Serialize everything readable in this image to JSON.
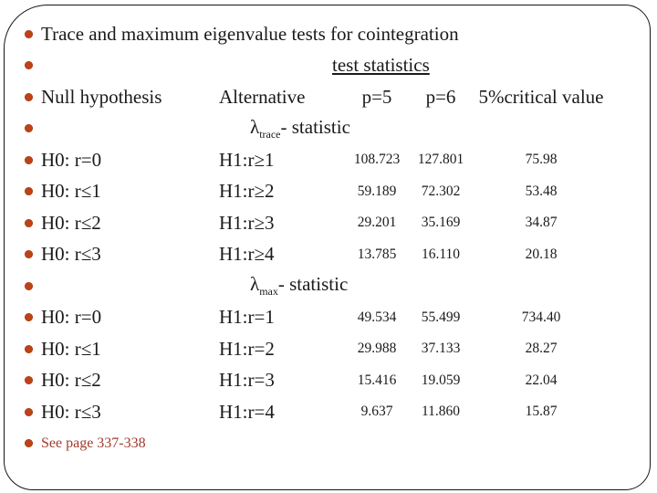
{
  "slide": {
    "title": "Trace and maximum eigenvalue tests for cointegration",
    "subtitle": "test statistics",
    "header": {
      "col1": "Null hypothesis",
      "col2": "Alternative",
      "col3": "p=5",
      "col4": "p=6",
      "col5": "5%critical value"
    },
    "sections": [
      {
        "label": {
          "lambda": "λ",
          "sub": "trace",
          "suffix": "- statistic"
        },
        "rows": [
          {
            "h0": "H0: r=0",
            "h1": "H1:r≥1",
            "p5": "108.723",
            "p6": "127.801",
            "crit": "75.98"
          },
          {
            "h0": "H0: r≤1",
            "h1": "H1:r≥2",
            "p5": "59.189",
            "p6": "72.302",
            "crit": "53.48"
          },
          {
            "h0": "H0: r≤2",
            "h1": "H1:r≥3",
            "p5": "29.201",
            "p6": "35.169",
            "crit": "34.87"
          },
          {
            "h0": "H0: r≤3",
            "h1": "H1:r≥4",
            "p5": "13.785",
            "p6": "16.110",
            "crit": "20.18"
          }
        ]
      },
      {
        "label": {
          "lambda": "λ",
          "sub": "max",
          "suffix": "- statistic"
        },
        "rows": [
          {
            "h0": "H0: r=0",
            "h1": "H1:r=1",
            "p5": "49.534",
            "p6": "55.499",
            "crit": "734.40"
          },
          {
            "h0": "H0: r≤1",
            "h1": "H1:r=2",
            "p5": "29.988",
            "p6": "37.133",
            "crit": "28.27"
          },
          {
            "h0": "H0: r≤2",
            "h1": "H1:r=3",
            "p5": "15.416",
            "p6": "19.059",
            "crit": "22.04"
          },
          {
            "h0": "H0: r≤3",
            "h1": "H1:r=4",
            "p5": "9.637",
            "p6": "11.860",
            "crit": "15.87"
          }
        ]
      }
    ],
    "note": "See page 337-338",
    "colors": {
      "bullet_accent": "#bd4317",
      "note_text": "#a33b2e",
      "frame_border": "#161616",
      "body_text": "#1a1a1a"
    }
  }
}
